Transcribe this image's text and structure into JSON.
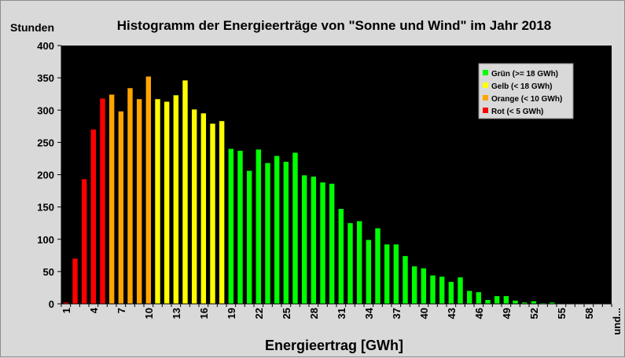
{
  "chart_data": {
    "type": "bar",
    "title": "Histogramm der Energieerträge von \"Sonne und Wind\" im Jahr 2018",
    "ylabel": "Stunden",
    "xlabel": "Energieertrag [GWh]",
    "ylim": [
      0,
      400
    ],
    "yticks": [
      0,
      50,
      100,
      150,
      200,
      250,
      300,
      350,
      400
    ],
    "xtick_labels": [
      "1",
      "4",
      "7",
      "10",
      "13",
      "16",
      "19",
      "22",
      "25",
      "28",
      "31",
      "34",
      "37",
      "40",
      "43",
      "46",
      "49",
      "52",
      "55",
      "58",
      "und..."
    ],
    "grid": false,
    "legend_position": "top-right",
    "categories": [
      1,
      2,
      3,
      4,
      5,
      6,
      7,
      8,
      9,
      10,
      11,
      12,
      13,
      14,
      15,
      16,
      17,
      18,
      19,
      20,
      21,
      22,
      23,
      24,
      25,
      26,
      27,
      28,
      29,
      30,
      31,
      32,
      33,
      34,
      35,
      36,
      37,
      38,
      39,
      40,
      41,
      42,
      43,
      44,
      45,
      46,
      47,
      48,
      49,
      50,
      51,
      52,
      53,
      54,
      55,
      56,
      57,
      58,
      59,
      60
    ],
    "values": [
      2,
      70,
      193,
      270,
      318,
      324,
      298,
      334,
      317,
      352,
      317,
      313,
      323,
      346,
      301,
      295,
      279,
      283,
      240,
      237,
      206,
      239,
      218,
      229,
      220,
      234,
      199,
      197,
      188,
      186,
      147,
      125,
      128,
      99,
      117,
      92,
      92,
      74,
      58,
      55,
      44,
      42,
      34,
      41,
      20,
      18,
      6,
      12,
      12,
      5,
      2,
      4,
      1,
      2,
      0,
      0,
      0,
      0,
      0,
      0
    ],
    "bar_colors": [
      "#ff0000",
      "#ff0000",
      "#ff0000",
      "#ff0000",
      "#ff0000",
      "#ffa500",
      "#ffa500",
      "#ffa500",
      "#ffa500",
      "#ffa500",
      "#ffff00",
      "#ffff00",
      "#ffff00",
      "#ffff00",
      "#ffff00",
      "#ffff00",
      "#ffff00",
      "#ffff00",
      "#00ff00",
      "#00ff00",
      "#00ff00",
      "#00ff00",
      "#00ff00",
      "#00ff00",
      "#00ff00",
      "#00ff00",
      "#00ff00",
      "#00ff00",
      "#00ff00",
      "#00ff00",
      "#00ff00",
      "#00ff00",
      "#00ff00",
      "#00ff00",
      "#00ff00",
      "#00ff00",
      "#00ff00",
      "#00ff00",
      "#00ff00",
      "#00ff00",
      "#00ff00",
      "#00ff00",
      "#00ff00",
      "#00ff00",
      "#00ff00",
      "#00ff00",
      "#00ff00",
      "#00ff00",
      "#00ff00",
      "#00ff00",
      "#00ff00",
      "#00ff00",
      "#00ff00",
      "#00ff00",
      "#00ff00",
      "#00ff00",
      "#00ff00",
      "#00ff00",
      "#00ff00",
      "#00ff00"
    ],
    "legend": [
      {
        "label": "Grün (>= 18 GWh)",
        "color": "#00ff00"
      },
      {
        "label": "Gelb (< 18 GWh)",
        "color": "#ffff00"
      },
      {
        "label": "Orange (< 10 GWh)",
        "color": "#ffa500"
      },
      {
        "label": "Rot (< 5 GWh)",
        "color": "#ff0000"
      }
    ],
    "plot_background": "#000000"
  }
}
